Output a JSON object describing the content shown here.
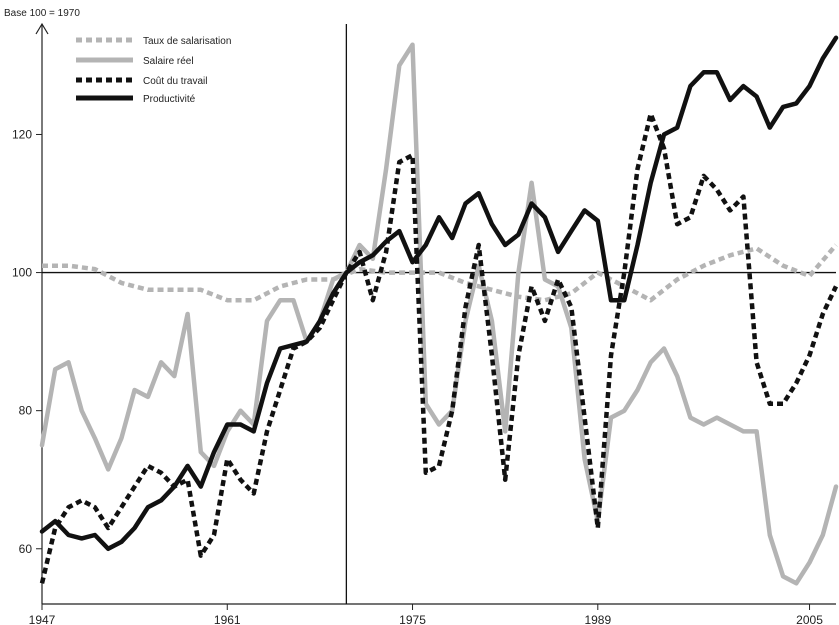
{
  "chart_data": {
    "type": "line",
    "ylabel": "Base 100 = 1970",
    "xlim": [
      1947,
      2007
    ],
    "ylim": [
      52,
      136
    ],
    "x_ticks": [
      1947,
      1961,
      1975,
      1989,
      2005
    ],
    "y_ticks": [
      60,
      80,
      100,
      120
    ],
    "reference_lines": {
      "x": 1970,
      "y": 100
    },
    "grid": false,
    "legend_position": "top-left",
    "legend": [
      "Taux de salarisation",
      "Salaire réel",
      "Coût du travail",
      "Productivité"
    ],
    "series": [
      {
        "name": "Taux de salarisation",
        "color": "#b4b4b4",
        "dash": "dotted",
        "points": [
          [
            1947,
            101
          ],
          [
            1949,
            101
          ],
          [
            1951,
            100.5
          ],
          [
            1953,
            98.5
          ],
          [
            1955,
            97.5
          ],
          [
            1957,
            97.5
          ],
          [
            1959,
            97.5
          ],
          [
            1961,
            96
          ],
          [
            1963,
            96
          ],
          [
            1965,
            98
          ],
          [
            1967,
            99
          ],
          [
            1969,
            99
          ],
          [
            1971,
            100.5
          ],
          [
            1973,
            100
          ],
          [
            1975,
            100
          ],
          [
            1977,
            100
          ],
          [
            1979,
            98.5
          ],
          [
            1981,
            97.5
          ],
          [
            1983,
            96.5
          ],
          [
            1985,
            96
          ],
          [
            1987,
            97
          ],
          [
            1989,
            100
          ],
          [
            1991,
            98
          ],
          [
            1993,
            96
          ],
          [
            1995,
            99
          ],
          [
            1997,
            101
          ],
          [
            1999,
            102.5
          ],
          [
            2001,
            103.5
          ],
          [
            2003,
            101
          ],
          [
            2005,
            99.5
          ],
          [
            2007,
            104
          ]
        ]
      },
      {
        "name": "Salaire réel",
        "color": "#b4b4b4",
        "dash": "solid",
        "points": [
          [
            1947,
            75
          ],
          [
            1948,
            86
          ],
          [
            1949,
            87
          ],
          [
            1950,
            80
          ],
          [
            1951,
            76
          ],
          [
            1952,
            71.5
          ],
          [
            1953,
            76
          ],
          [
            1954,
            83
          ],
          [
            1955,
            82
          ],
          [
            1956,
            87
          ],
          [
            1957,
            85
          ],
          [
            1958,
            94
          ],
          [
            1959,
            74
          ],
          [
            1960,
            72
          ],
          [
            1961,
            77
          ],
          [
            1962,
            80
          ],
          [
            1963,
            78
          ],
          [
            1964,
            93
          ],
          [
            1965,
            96
          ],
          [
            1966,
            96
          ],
          [
            1967,
            90
          ],
          [
            1968,
            93
          ],
          [
            1969,
            99
          ],
          [
            1970,
            100
          ],
          [
            1971,
            104
          ],
          [
            1972,
            102
          ],
          [
            1973,
            115
          ],
          [
            1974,
            130
          ],
          [
            1975,
            133
          ],
          [
            1976,
            81
          ],
          [
            1977,
            78
          ],
          [
            1978,
            80
          ],
          [
            1979,
            93
          ],
          [
            1980,
            101
          ],
          [
            1981,
            93
          ],
          [
            1982,
            77
          ],
          [
            1983,
            100
          ],
          [
            1984,
            113
          ],
          [
            1985,
            99
          ],
          [
            1986,
            98
          ],
          [
            1987,
            92
          ],
          [
            1988,
            73
          ],
          [
            1989,
            64
          ],
          [
            1990,
            79
          ],
          [
            1991,
            80
          ],
          [
            1992,
            83
          ],
          [
            1993,
            87
          ],
          [
            1994,
            89
          ],
          [
            1995,
            85
          ],
          [
            1996,
            79
          ],
          [
            1997,
            78
          ],
          [
            1998,
            79
          ],
          [
            1999,
            78
          ],
          [
            2000,
            77
          ],
          [
            2001,
            77
          ],
          [
            2002,
            62
          ],
          [
            2003,
            56
          ],
          [
            2004,
            55
          ],
          [
            2005,
            58
          ],
          [
            2006,
            62
          ],
          [
            2007,
            69
          ]
        ]
      },
      {
        "name": "Coût du travail",
        "color": "#111111",
        "dash": "dotted",
        "points": [
          [
            1947,
            55
          ],
          [
            1948,
            63
          ],
          [
            1949,
            66
          ],
          [
            1950,
            67
          ],
          [
            1951,
            66
          ],
          [
            1952,
            63
          ],
          [
            1953,
            66
          ],
          [
            1954,
            69
          ],
          [
            1955,
            72
          ],
          [
            1956,
            71
          ],
          [
            1957,
            69
          ],
          [
            1958,
            70
          ],
          [
            1959,
            59
          ],
          [
            1960,
            62
          ],
          [
            1961,
            73
          ],
          [
            1962,
            70
          ],
          [
            1963,
            68
          ],
          [
            1964,
            77
          ],
          [
            1965,
            83
          ],
          [
            1966,
            89
          ],
          [
            1967,
            90
          ],
          [
            1968,
            92
          ],
          [
            1969,
            96
          ],
          [
            1970,
            100
          ],
          [
            1971,
            103
          ],
          [
            1972,
            96
          ],
          [
            1973,
            103
          ],
          [
            1974,
            116
          ],
          [
            1975,
            117
          ],
          [
            1976,
            71
          ],
          [
            1977,
            72
          ],
          [
            1978,
            80
          ],
          [
            1979,
            95
          ],
          [
            1980,
            104
          ],
          [
            1981,
            88
          ],
          [
            1982,
            70
          ],
          [
            1983,
            88
          ],
          [
            1984,
            98
          ],
          [
            1985,
            93
          ],
          [
            1986,
            99
          ],
          [
            1987,
            95
          ],
          [
            1988,
            79
          ],
          [
            1989,
            63
          ],
          [
            1990,
            88
          ],
          [
            1991,
            100
          ],
          [
            1992,
            115
          ],
          [
            1993,
            123
          ],
          [
            1994,
            118
          ],
          [
            1995,
            107
          ],
          [
            1996,
            108
          ],
          [
            1997,
            114
          ],
          [
            1998,
            112
          ],
          [
            1999,
            109
          ],
          [
            2000,
            111
          ],
          [
            2001,
            87
          ],
          [
            2002,
            81
          ],
          [
            2003,
            81
          ],
          [
            2004,
            84
          ],
          [
            2005,
            88
          ],
          [
            2006,
            94
          ],
          [
            2007,
            98
          ]
        ]
      },
      {
        "name": "Productivité",
        "color": "#111111",
        "dash": "solid",
        "points": [
          [
            1947,
            62.5
          ],
          [
            1948,
            64
          ],
          [
            1949,
            62
          ],
          [
            1950,
            61.5
          ],
          [
            1951,
            62
          ],
          [
            1952,
            60
          ],
          [
            1953,
            61
          ],
          [
            1954,
            63
          ],
          [
            1955,
            66
          ],
          [
            1956,
            67
          ],
          [
            1957,
            69
          ],
          [
            1958,
            72
          ],
          [
            1959,
            69
          ],
          [
            1960,
            74
          ],
          [
            1961,
            78
          ],
          [
            1962,
            78
          ],
          [
            1963,
            77
          ],
          [
            1964,
            84
          ],
          [
            1965,
            89
          ],
          [
            1966,
            89.5
          ],
          [
            1967,
            90
          ],
          [
            1968,
            93
          ],
          [
            1969,
            97
          ],
          [
            1970,
            100
          ],
          [
            1971,
            101.5
          ],
          [
            1972,
            102.5
          ],
          [
            1973,
            104.5
          ],
          [
            1974,
            106
          ],
          [
            1975,
            101.5
          ],
          [
            1976,
            104
          ],
          [
            1977,
            108
          ],
          [
            1978,
            105
          ],
          [
            1979,
            110
          ],
          [
            1980,
            111.5
          ],
          [
            1981,
            107
          ],
          [
            1982,
            104
          ],
          [
            1983,
            105.5
          ],
          [
            1984,
            110
          ],
          [
            1985,
            108
          ],
          [
            1986,
            103
          ],
          [
            1987,
            106
          ],
          [
            1988,
            109
          ],
          [
            1989,
            107.5
          ],
          [
            1990,
            96
          ],
          [
            1991,
            96
          ],
          [
            1992,
            104
          ],
          [
            1993,
            113
          ],
          [
            1994,
            120
          ],
          [
            1995,
            121
          ],
          [
            1996,
            127
          ],
          [
            1997,
            129
          ],
          [
            1998,
            129
          ],
          [
            1999,
            125
          ],
          [
            2000,
            127
          ],
          [
            2001,
            125.5
          ],
          [
            2002,
            121
          ],
          [
            2003,
            124
          ],
          [
            2004,
            124.5
          ],
          [
            2005,
            127
          ],
          [
            2006,
            131
          ],
          [
            2007,
            134
          ]
        ]
      }
    ]
  }
}
